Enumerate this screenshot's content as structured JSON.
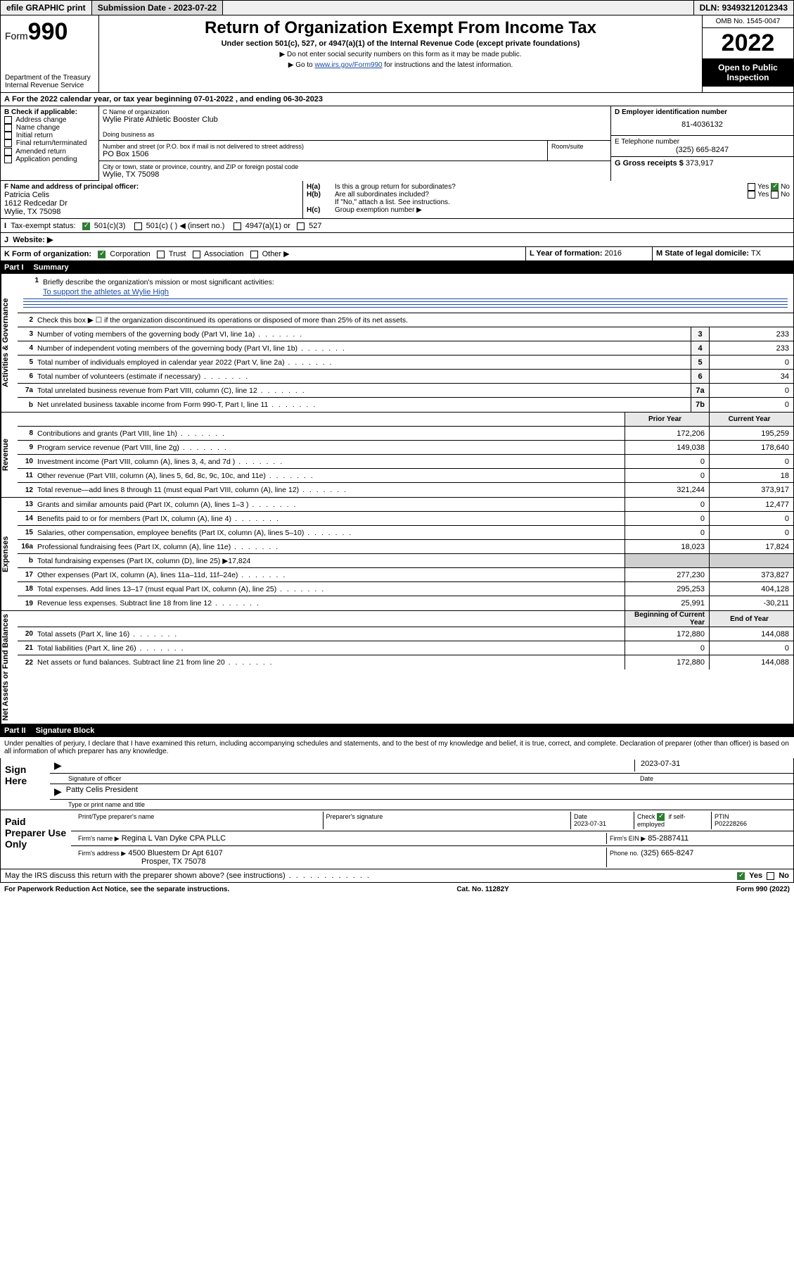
{
  "colors": {
    "link": "#1a4ba8",
    "black": "#000000",
    "check_green": "#2e7d32",
    "shade": "#cfcfcf",
    "header_bg": "#efefef"
  },
  "topbar": {
    "efile": "efile GRAPHIC print",
    "submission_label": "Submission Date - 2023-07-22",
    "dln": "DLN: 93493212012343"
  },
  "header": {
    "form_word": "Form",
    "form_num": "990",
    "dept": "Department of the Treasury",
    "irs": "Internal Revenue Service",
    "title": "Return of Organization Exempt From Income Tax",
    "sub": "Under section 501(c), 527, or 4947(a)(1) of the Internal Revenue Code (except private foundations)",
    "note1": "▶ Do not enter social security numbers on this form as it may be made public.",
    "note2_pre": "▶ Go to ",
    "note2_link": "www.irs.gov/Form990",
    "note2_post": " for instructions and the latest information.",
    "omb": "OMB No. 1545-0047",
    "year": "2022",
    "inspect": "Open to Public Inspection"
  },
  "A": {
    "text": "For the 2022 calendar year, or tax year beginning 07-01-2022   , and ending 06-30-2023"
  },
  "B": {
    "label": "B Check if applicable:",
    "items": [
      "Address change",
      "Name change",
      "Initial return",
      "Final return/terminated",
      "Amended return",
      "Application pending"
    ]
  },
  "C": {
    "name_label": "C Name of organization",
    "name": "Wylie Pirate Athletic Booster Club",
    "dba_label": "Doing business as",
    "street_label": "Number and street (or P.O. box if mail is not delivered to street address)",
    "room_label": "Room/suite",
    "street": "PO Box 1506",
    "city_label": "City or town, state or province, country, and ZIP or foreign postal code",
    "city": "Wylie, TX  75098"
  },
  "D": {
    "label": "D Employer identification number",
    "value": "81-4036132"
  },
  "E": {
    "label": "E Telephone number",
    "value": "(325) 665-8247"
  },
  "G": {
    "label": "G Gross receipts $",
    "value": "373,917"
  },
  "F": {
    "label": "F Name and address of principal officer:",
    "name": "Patricia Celis",
    "addr1": "1612 Redcedar Dr",
    "addr2": "Wylie, TX  75098"
  },
  "H": {
    "a": "Is this a group return for subordinates?",
    "b": "Are all subordinates included?",
    "b_note": "If \"No,\" attach a list. See instructions.",
    "c": "Group exemption number ▶",
    "yes": "Yes",
    "no": "No"
  },
  "I": {
    "label": "Tax-exempt status:",
    "opts": [
      "501(c)(3)",
      "501(c) (  ) ◀ (insert no.)",
      "4947(a)(1) or",
      "527"
    ]
  },
  "J": {
    "label": "Website: ▶"
  },
  "K": {
    "label": "K Form of organization:",
    "opts": [
      "Corporation",
      "Trust",
      "Association",
      "Other ▶"
    ]
  },
  "L": {
    "label": "L Year of formation:",
    "value": "2016"
  },
  "M": {
    "label": "M State of legal domicile:",
    "value": "TX"
  },
  "partI": {
    "bar_label": "Part I",
    "bar_title": "Summary",
    "sections": [
      {
        "vlabel": "Activities & Governance",
        "rows": [
          {
            "n": "1",
            "t": "Briefly describe the organization's mission or most significant activities:",
            "mission": "To support the athletes at Wylie High",
            "type": "mission"
          },
          {
            "n": "2",
            "t": "Check this box ▶ ☐  if the organization discontinued its operations or disposed of more than 25% of its net assets.",
            "type": "plain"
          },
          {
            "n": "3",
            "t": "Number of voting members of the governing body (Part VI, line 1a)",
            "box": "3",
            "v": "233"
          },
          {
            "n": "4",
            "t": "Number of independent voting members of the governing body (Part VI, line 1b)",
            "box": "4",
            "v": "233"
          },
          {
            "n": "5",
            "t": "Total number of individuals employed in calendar year 2022 (Part V, line 2a)",
            "box": "5",
            "v": "0"
          },
          {
            "n": "6",
            "t": "Total number of volunteers (estimate if necessary)",
            "box": "6",
            "v": "34"
          },
          {
            "n": "7a",
            "t": "Total unrelated business revenue from Part VIII, column (C), line 12",
            "box": "7a",
            "v": "0"
          },
          {
            "n": "b",
            "t": "Net unrelated business taxable income from Form 990-T, Part I, line 11",
            "box": "7b",
            "v": "0"
          }
        ]
      },
      {
        "vlabel": "Revenue",
        "header": {
          "c1": "Prior Year",
          "c2": "Current Year"
        },
        "rows": [
          {
            "n": "8",
            "t": "Contributions and grants (Part VIII, line 1h)",
            "py": "172,206",
            "cy": "195,259"
          },
          {
            "n": "9",
            "t": "Program service revenue (Part VIII, line 2g)",
            "py": "149,038",
            "cy": "178,640"
          },
          {
            "n": "10",
            "t": "Investment income (Part VIII, column (A), lines 3, 4, and 7d )",
            "py": "0",
            "cy": "0"
          },
          {
            "n": "11",
            "t": "Other revenue (Part VIII, column (A), lines 5, 6d, 8c, 9c, 10c, and 11e)",
            "py": "0",
            "cy": "18"
          },
          {
            "n": "12",
            "t": "Total revenue—add lines 8 through 11 (must equal Part VIII, column (A), line 12)",
            "py": "321,244",
            "cy": "373,917"
          }
        ]
      },
      {
        "vlabel": "Expenses",
        "rows": [
          {
            "n": "13",
            "t": "Grants and similar amounts paid (Part IX, column (A), lines 1–3 )",
            "py": "0",
            "cy": "12,477"
          },
          {
            "n": "14",
            "t": "Benefits paid to or for members (Part IX, column (A), line 4)",
            "py": "0",
            "cy": "0"
          },
          {
            "n": "15",
            "t": "Salaries, other compensation, employee benefits (Part IX, column (A), lines 5–10)",
            "py": "0",
            "cy": "0"
          },
          {
            "n": "16a",
            "t": "Professional fundraising fees (Part IX, column (A), line 11e)",
            "py": "18,023",
            "cy": "17,824"
          },
          {
            "n": "b",
            "t": "Total fundraising expenses (Part IX, column (D), line 25) ▶17,824",
            "type": "noval"
          },
          {
            "n": "17",
            "t": "Other expenses (Part IX, column (A), lines 11a–11d, 11f–24e)",
            "py": "277,230",
            "cy": "373,827"
          },
          {
            "n": "18",
            "t": "Total expenses. Add lines 13–17 (must equal Part IX, column (A), line 25)",
            "py": "295,253",
            "cy": "404,128"
          },
          {
            "n": "19",
            "t": "Revenue less expenses. Subtract line 18 from line 12",
            "py": "25,991",
            "cy": "-30,211"
          }
        ]
      },
      {
        "vlabel": "Net Assets or Fund Balances",
        "header": {
          "c1": "Beginning of Current Year",
          "c2": "End of Year"
        },
        "rows": [
          {
            "n": "20",
            "t": "Total assets (Part X, line 16)",
            "py": "172,880",
            "cy": "144,088"
          },
          {
            "n": "21",
            "t": "Total liabilities (Part X, line 26)",
            "py": "0",
            "cy": "0"
          },
          {
            "n": "22",
            "t": "Net assets or fund balances. Subtract line 21 from line 20",
            "py": "172,880",
            "cy": "144,088"
          }
        ]
      }
    ]
  },
  "partII": {
    "bar_label": "Part II",
    "bar_title": "Signature Block",
    "penalty": "Under penalties of perjury, I declare that I have examined this return, including accompanying schedules and statements, and to the best of my knowledge and belief, it is true, correct, and complete. Declaration of preparer (other than officer) is based on all information of which preparer has any knowledge."
  },
  "sign": {
    "label": "Sign Here",
    "date": "2023-07-31",
    "sig_label": "Signature of officer",
    "date_label": "Date",
    "name": "Patty Celis  President",
    "name_label": "Type or print name and title"
  },
  "preparer": {
    "label": "Paid Preparer Use Only",
    "h1": "Print/Type preparer's name",
    "h2": "Preparer's signature",
    "h3": "Date",
    "date": "2023-07-31",
    "h4_pre": "Check",
    "h4_post": "if self-employed",
    "h5": "PTIN",
    "ptin": "P02228266",
    "firm_name_l": "Firm's name    ▶",
    "firm_name": "Regina L Van Dyke CPA PLLC",
    "firm_ein_l": "Firm's EIN ▶",
    "firm_ein": "85-2887411",
    "firm_addr_l": "Firm's address ▶",
    "firm_addr1": "4500 Bluestem Dr Apt 6107",
    "firm_addr2": "Prosper, TX  75078",
    "phone_l": "Phone no.",
    "phone": "(325) 665-8247",
    "discuss": "May the IRS discuss this return with the preparer shown above? (see instructions)"
  },
  "footer": {
    "l": "For Paperwork Reduction Act Notice, see the separate instructions.",
    "m": "Cat. No. 11282Y",
    "r": "Form 990 (2022)"
  }
}
